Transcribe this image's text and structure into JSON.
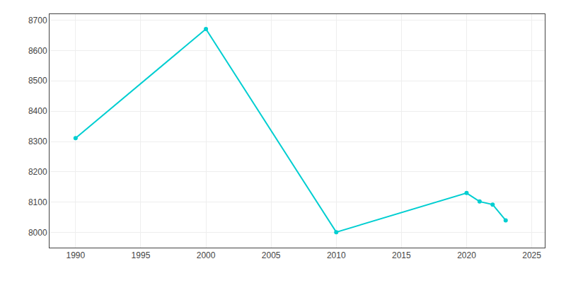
{
  "chart_data": {
    "type": "line",
    "x": [
      1990,
      2000,
      2010,
      2020,
      2021,
      2022,
      2023
    ],
    "values": [
      8311,
      8671,
      8001,
      8130,
      8102,
      8092,
      8040
    ],
    "color": "#00CED1",
    "marker": "circle",
    "xlim": [
      1988,
      2026
    ],
    "ylim": [
      7950,
      8720
    ],
    "xticks": [
      1990,
      1995,
      2000,
      2005,
      2010,
      2015,
      2020,
      2025
    ],
    "yticks": [
      8000,
      8100,
      8200,
      8300,
      8400,
      8500,
      8600,
      8700
    ],
    "grid": true
  }
}
